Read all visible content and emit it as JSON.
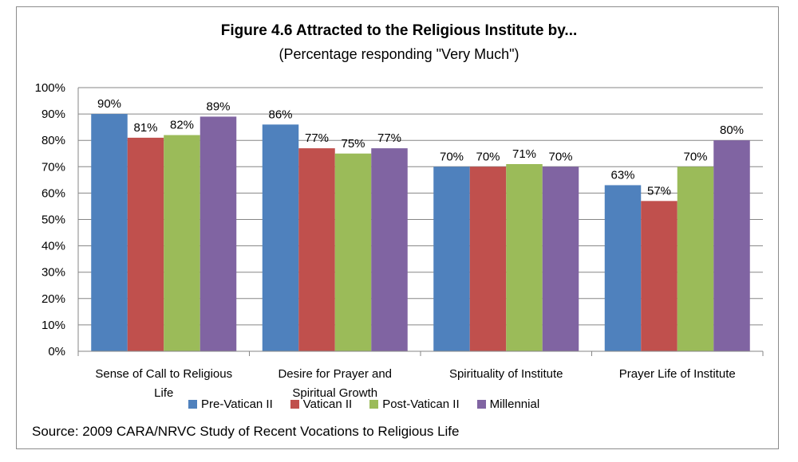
{
  "chart_data": {
    "type": "bar",
    "title": "Figure 4.6  Attracted to the Religious Institute by...",
    "subtitle": "(Percentage responding \"Very Much\")",
    "categories": [
      [
        "Sense of Call to Religious",
        "Life"
      ],
      [
        "Desire for Prayer and",
        "Spiritual Growth"
      ],
      [
        "Spirituality of Institute"
      ],
      [
        "Prayer Life of Institute"
      ]
    ],
    "series": [
      {
        "name": "Pre-Vatican II",
        "color": "#4f81bd",
        "values": [
          90,
          86,
          70,
          63
        ]
      },
      {
        "name": "Vatican II",
        "color": "#c0504d",
        "values": [
          81,
          77,
          70,
          57
        ]
      },
      {
        "name": "Post-Vatican II",
        "color": "#9bbb59",
        "values": [
          82,
          75,
          71,
          70
        ]
      },
      {
        "name": "Millennial",
        "color": "#8064a2",
        "values": [
          89,
          77,
          70,
          80
        ]
      }
    ],
    "ylim": [
      0,
      100
    ],
    "yticks": [
      "0%",
      "10%",
      "20%",
      "30%",
      "40%",
      "50%",
      "60%",
      "70%",
      "80%",
      "90%",
      "100%"
    ],
    "value_suffix": "%",
    "grid": true,
    "legend_position": "bottom"
  },
  "source": "Source:  2009 CARA/NRVC Study of Recent Vocations to Religious Life"
}
